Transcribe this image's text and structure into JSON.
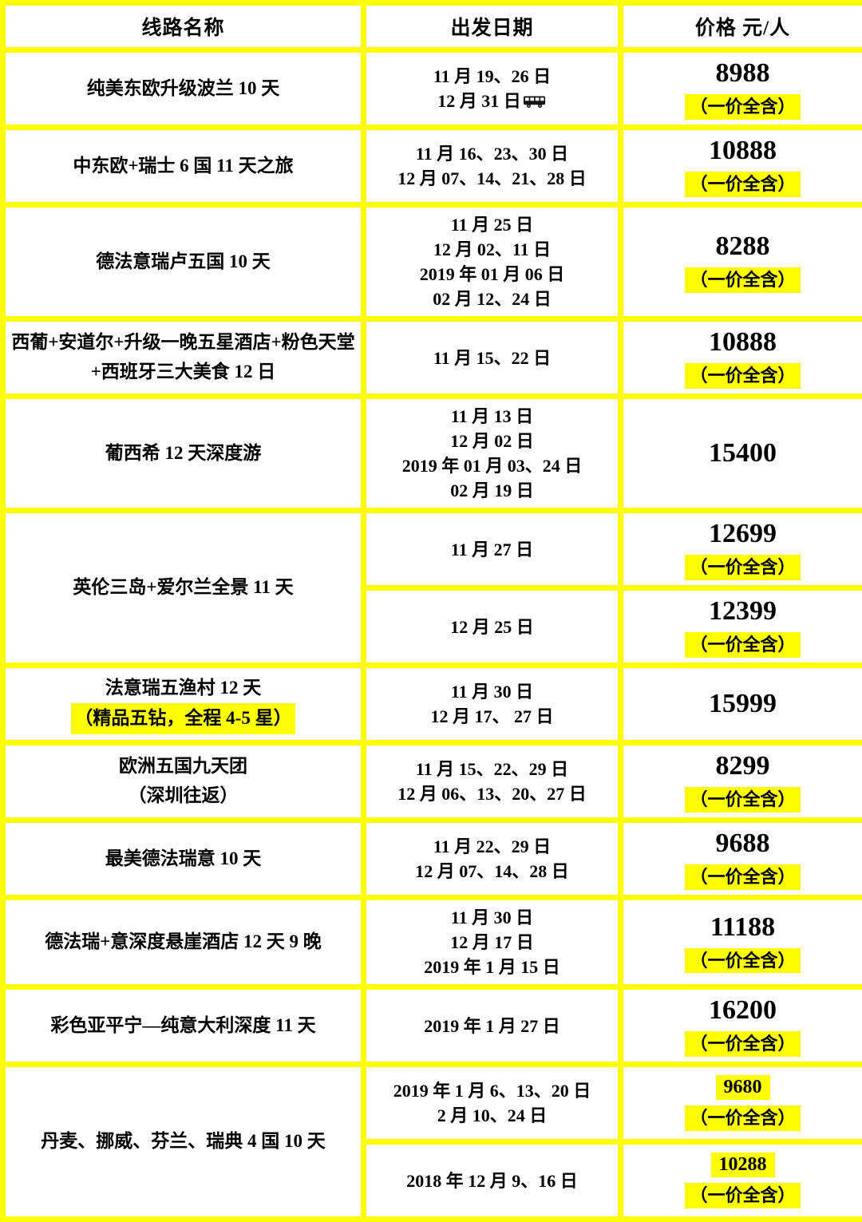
{
  "colors": {
    "accent_yellow": "#ffff00",
    "text": "#000000",
    "cell_background": "#ffffff"
  },
  "table": {
    "headers": [
      {
        "label": "线路名称"
      },
      {
        "label": "出发日期"
      },
      {
        "label": "价格 元/人"
      }
    ],
    "price_note_label": "（一价全含）",
    "rows": [
      {
        "name": [
          {
            "text": "纯美东欧升级波兰 10 天"
          }
        ],
        "cells": [
          {
            "dates": [
              {
                "text": "11 月 19、26 日"
              },
              {
                "text": "12 月 31 日",
                "icon": "bus-icon"
              }
            ],
            "price": "8988",
            "note": true
          }
        ]
      },
      {
        "name": [
          {
            "text": "中东欧+瑞士 6 国 11 天之旅"
          }
        ],
        "cells": [
          {
            "dates": [
              {
                "text": "11 月 16、23、30 日"
              },
              {
                "text": "12 月 07、14、21、28 日"
              }
            ],
            "price": "10888",
            "note": true
          }
        ]
      },
      {
        "name": [
          {
            "text": "德法意瑞卢五国 10 天"
          }
        ],
        "cells": [
          {
            "dates": [
              {
                "text": "11 月 25 日"
              },
              {
                "text": "12 月 02、11 日"
              },
              {
                "text": "2019 年 01 月 06 日"
              },
              {
                "text": "02 月 12、24 日"
              }
            ],
            "price": "8288",
            "note": true
          }
        ]
      },
      {
        "name": [
          {
            "text": "西葡+安道尔+升级一晚五星酒店+粉色天堂"
          },
          {
            "text": "+西班牙三大美食 12 日"
          }
        ],
        "cells": [
          {
            "dates": [
              {
                "text": "11 月 15、22 日"
              }
            ],
            "price": "10888",
            "note": true
          }
        ]
      },
      {
        "name": [
          {
            "text": "葡西希 12 天深度游"
          }
        ],
        "cells": [
          {
            "dates": [
              {
                "text": "11 月 13 日"
              },
              {
                "text": "12 月 02 日"
              },
              {
                "text": "2019 年 01 月 03、24 日"
              },
              {
                "text": "02 月 19 日"
              }
            ],
            "price": "15400",
            "note": false
          }
        ]
      },
      {
        "name": [
          {
            "text": "英伦三岛+爱尔兰全景 11 天"
          }
        ],
        "cells": [
          {
            "dates": [
              {
                "text": "11 月 27 日"
              }
            ],
            "price": "12699",
            "note": true
          },
          {
            "dates": [
              {
                "text": "12 月 25 日"
              }
            ],
            "price": "12399",
            "note": true
          }
        ]
      },
      {
        "name": [
          {
            "text": "法意瑞五渔村 12 天"
          },
          {
            "text": "（精品五钻，全程 4-5 星）",
            "highlight": true
          }
        ],
        "cells": [
          {
            "dates": [
              {
                "text": "11 月 30 日"
              },
              {
                "text": "12 月 17、 27 日"
              }
            ],
            "price": "15999",
            "note": false
          }
        ]
      },
      {
        "name": [
          {
            "text": "欧洲五国九天团"
          },
          {
            "text": "（深圳往返）"
          }
        ],
        "cells": [
          {
            "dates": [
              {
                "text": "11 月 15、22、29 日"
              },
              {
                "text": "12 月 06、13、20、27 日"
              }
            ],
            "price": "8299",
            "note": true
          }
        ]
      },
      {
        "name": [
          {
            "text": "最美德法瑞意 10 天"
          }
        ],
        "cells": [
          {
            "dates": [
              {
                "text": "11 月 22、29 日"
              },
              {
                "text": "12 月 07、14、28 日"
              }
            ],
            "price": "9688",
            "note": true
          }
        ]
      },
      {
        "name": [
          {
            "text": "德法瑞+意深度悬崖酒店 12 天 9 晚"
          }
        ],
        "cells": [
          {
            "dates": [
              {
                "text": "11 月 30 日"
              },
              {
                "text": "12 月 17 日"
              },
              {
                "text": "2019 年 1 月 15 日"
              }
            ],
            "price": "11188",
            "note": true
          }
        ]
      },
      {
        "name": [
          {
            "text": "彩色亚平宁—纯意大利深度 11 天"
          }
        ],
        "cells": [
          {
            "dates": [
              {
                "text": "2019 年 1 月 27 日"
              }
            ],
            "price": "16200",
            "note": true
          }
        ]
      },
      {
        "name": [
          {
            "text": "丹麦、挪威、芬兰、瑞典 4 国 10 天"
          }
        ],
        "cells": [
          {
            "dates": [
              {
                "text": "2019 年 1 月 6、13、20 日"
              },
              {
                "text": "2 月 10、24 日"
              }
            ],
            "price": "9680",
            "note": true,
            "price_highlight": true
          },
          {
            "dates": [
              {
                "text": "2018 年 12 月 9、16 日"
              }
            ],
            "price": "10288",
            "note": true,
            "price_highlight": true
          }
        ]
      }
    ]
  }
}
